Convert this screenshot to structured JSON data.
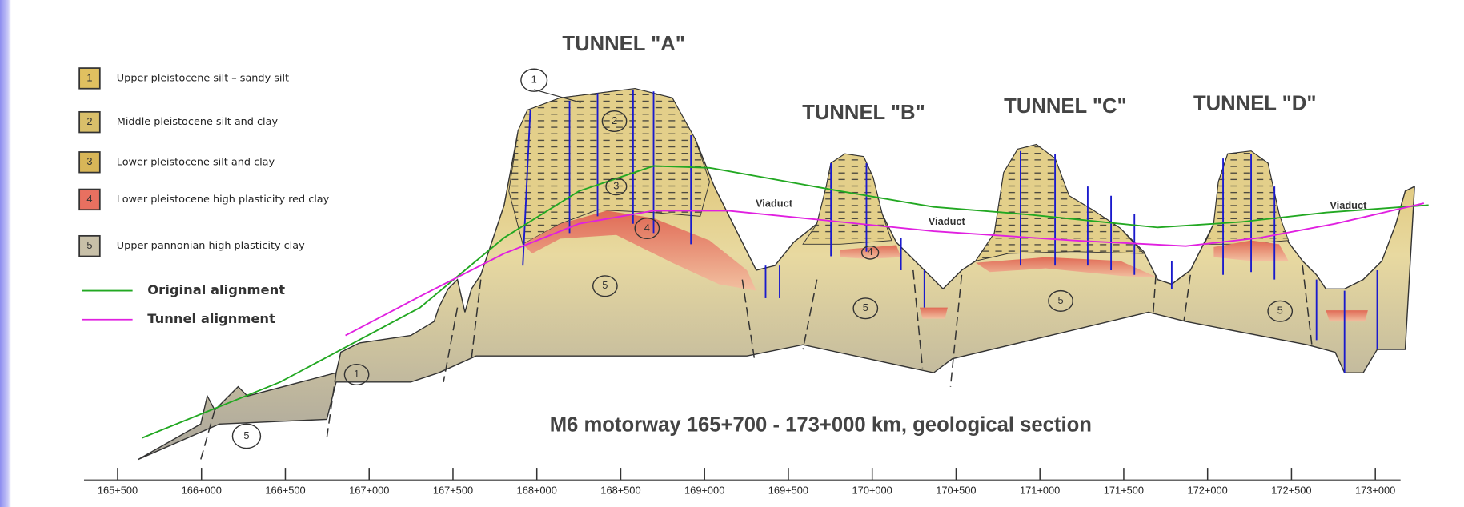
{
  "legend": [
    {
      "number": "1",
      "label": "Upper pleistocene silt – sandy silt"
    },
    {
      "number": "2",
      "label": "Middle pleistocene silt and clay"
    },
    {
      "number": "3",
      "label": "Lower pleistocene silt and clay"
    },
    {
      "number": "4",
      "label": "Lower pleistocene high plasticity red clay"
    },
    {
      "number": "5",
      "label": "Upper pannonian high plasticity clay"
    }
  ],
  "alignments": [
    {
      "label": "Original alignment"
    },
    {
      "label": "Tunnel alignment"
    }
  ],
  "tunnels": [
    "TUNNEL \"A\"",
    "TUNNEL \"B\"",
    "TUNNEL \"C\"",
    "TUNNEL \"D\""
  ],
  "viaducts": [
    "Viaduct",
    "Viaduct",
    "Viaduct"
  ],
  "title": "M6 motorway 165+700 - 173+000 km, geological section",
  "axis_labels": [
    "165+500",
    "166+000",
    "166+500",
    "167+000",
    "167+500",
    "168+000",
    "168+500",
    "169+000",
    "169+500",
    "170+000",
    "170+500",
    "171+000",
    "171+500",
    "172+000",
    "172+500",
    "173+000"
  ],
  "section_markers": [
    "1",
    "2",
    "3",
    "4",
    "5",
    "4",
    "5",
    "5",
    "5",
    "1",
    "5"
  ]
}
